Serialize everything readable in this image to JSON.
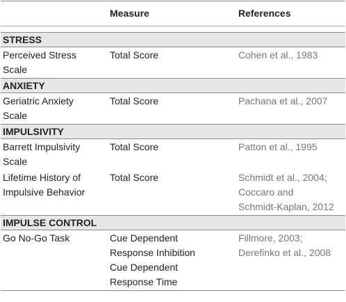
{
  "header": [
    "Measure",
    "References"
  ],
  "sections": [
    {
      "title": "STRESS",
      "rows": [
        {
          "name": [
            "Perceived Stress",
            "Scale"
          ],
          "measures": [
            [
              "Total Score"
            ]
          ],
          "references": [
            "Cohen et al., 1983"
          ]
        }
      ]
    },
    {
      "title": "ANXIETY",
      "rows": [
        {
          "name": [
            "Geriatric Anxiety",
            "Scale"
          ],
          "measures": [
            [
              "Total Score"
            ]
          ],
          "references": [
            "Pachana et al., 2007"
          ]
        }
      ]
    },
    {
      "title": "IMPULSIVITY",
      "rows": [
        {
          "name": [
            "Barrett Impulsivity",
            "Scale"
          ],
          "measures": [
            [
              "Total Score"
            ]
          ],
          "references": [
            "Patton et al., 1995"
          ]
        },
        {
          "name": [
            "Lifetime History of",
            "Impulsive Behavior"
          ],
          "measures": [
            [
              "Total Score"
            ]
          ],
          "references": [
            "Schmidt et al., 2004;",
            "Coccaro and",
            "Schmidt-Kaplan, 2012"
          ]
        }
      ]
    },
    {
      "title": "IMPULSE CONTROL",
      "rows": [
        {
          "name": [
            "Go No-Go Task"
          ],
          "measures": [
            [
              "Cue Dependent",
              "Response Inhibition"
            ],
            [
              "Cue Dependent",
              "Response Time"
            ]
          ],
          "references": [
            "Fillmore, 2003;",
            "Derefinko et al., 2008"
          ]
        }
      ]
    }
  ]
}
